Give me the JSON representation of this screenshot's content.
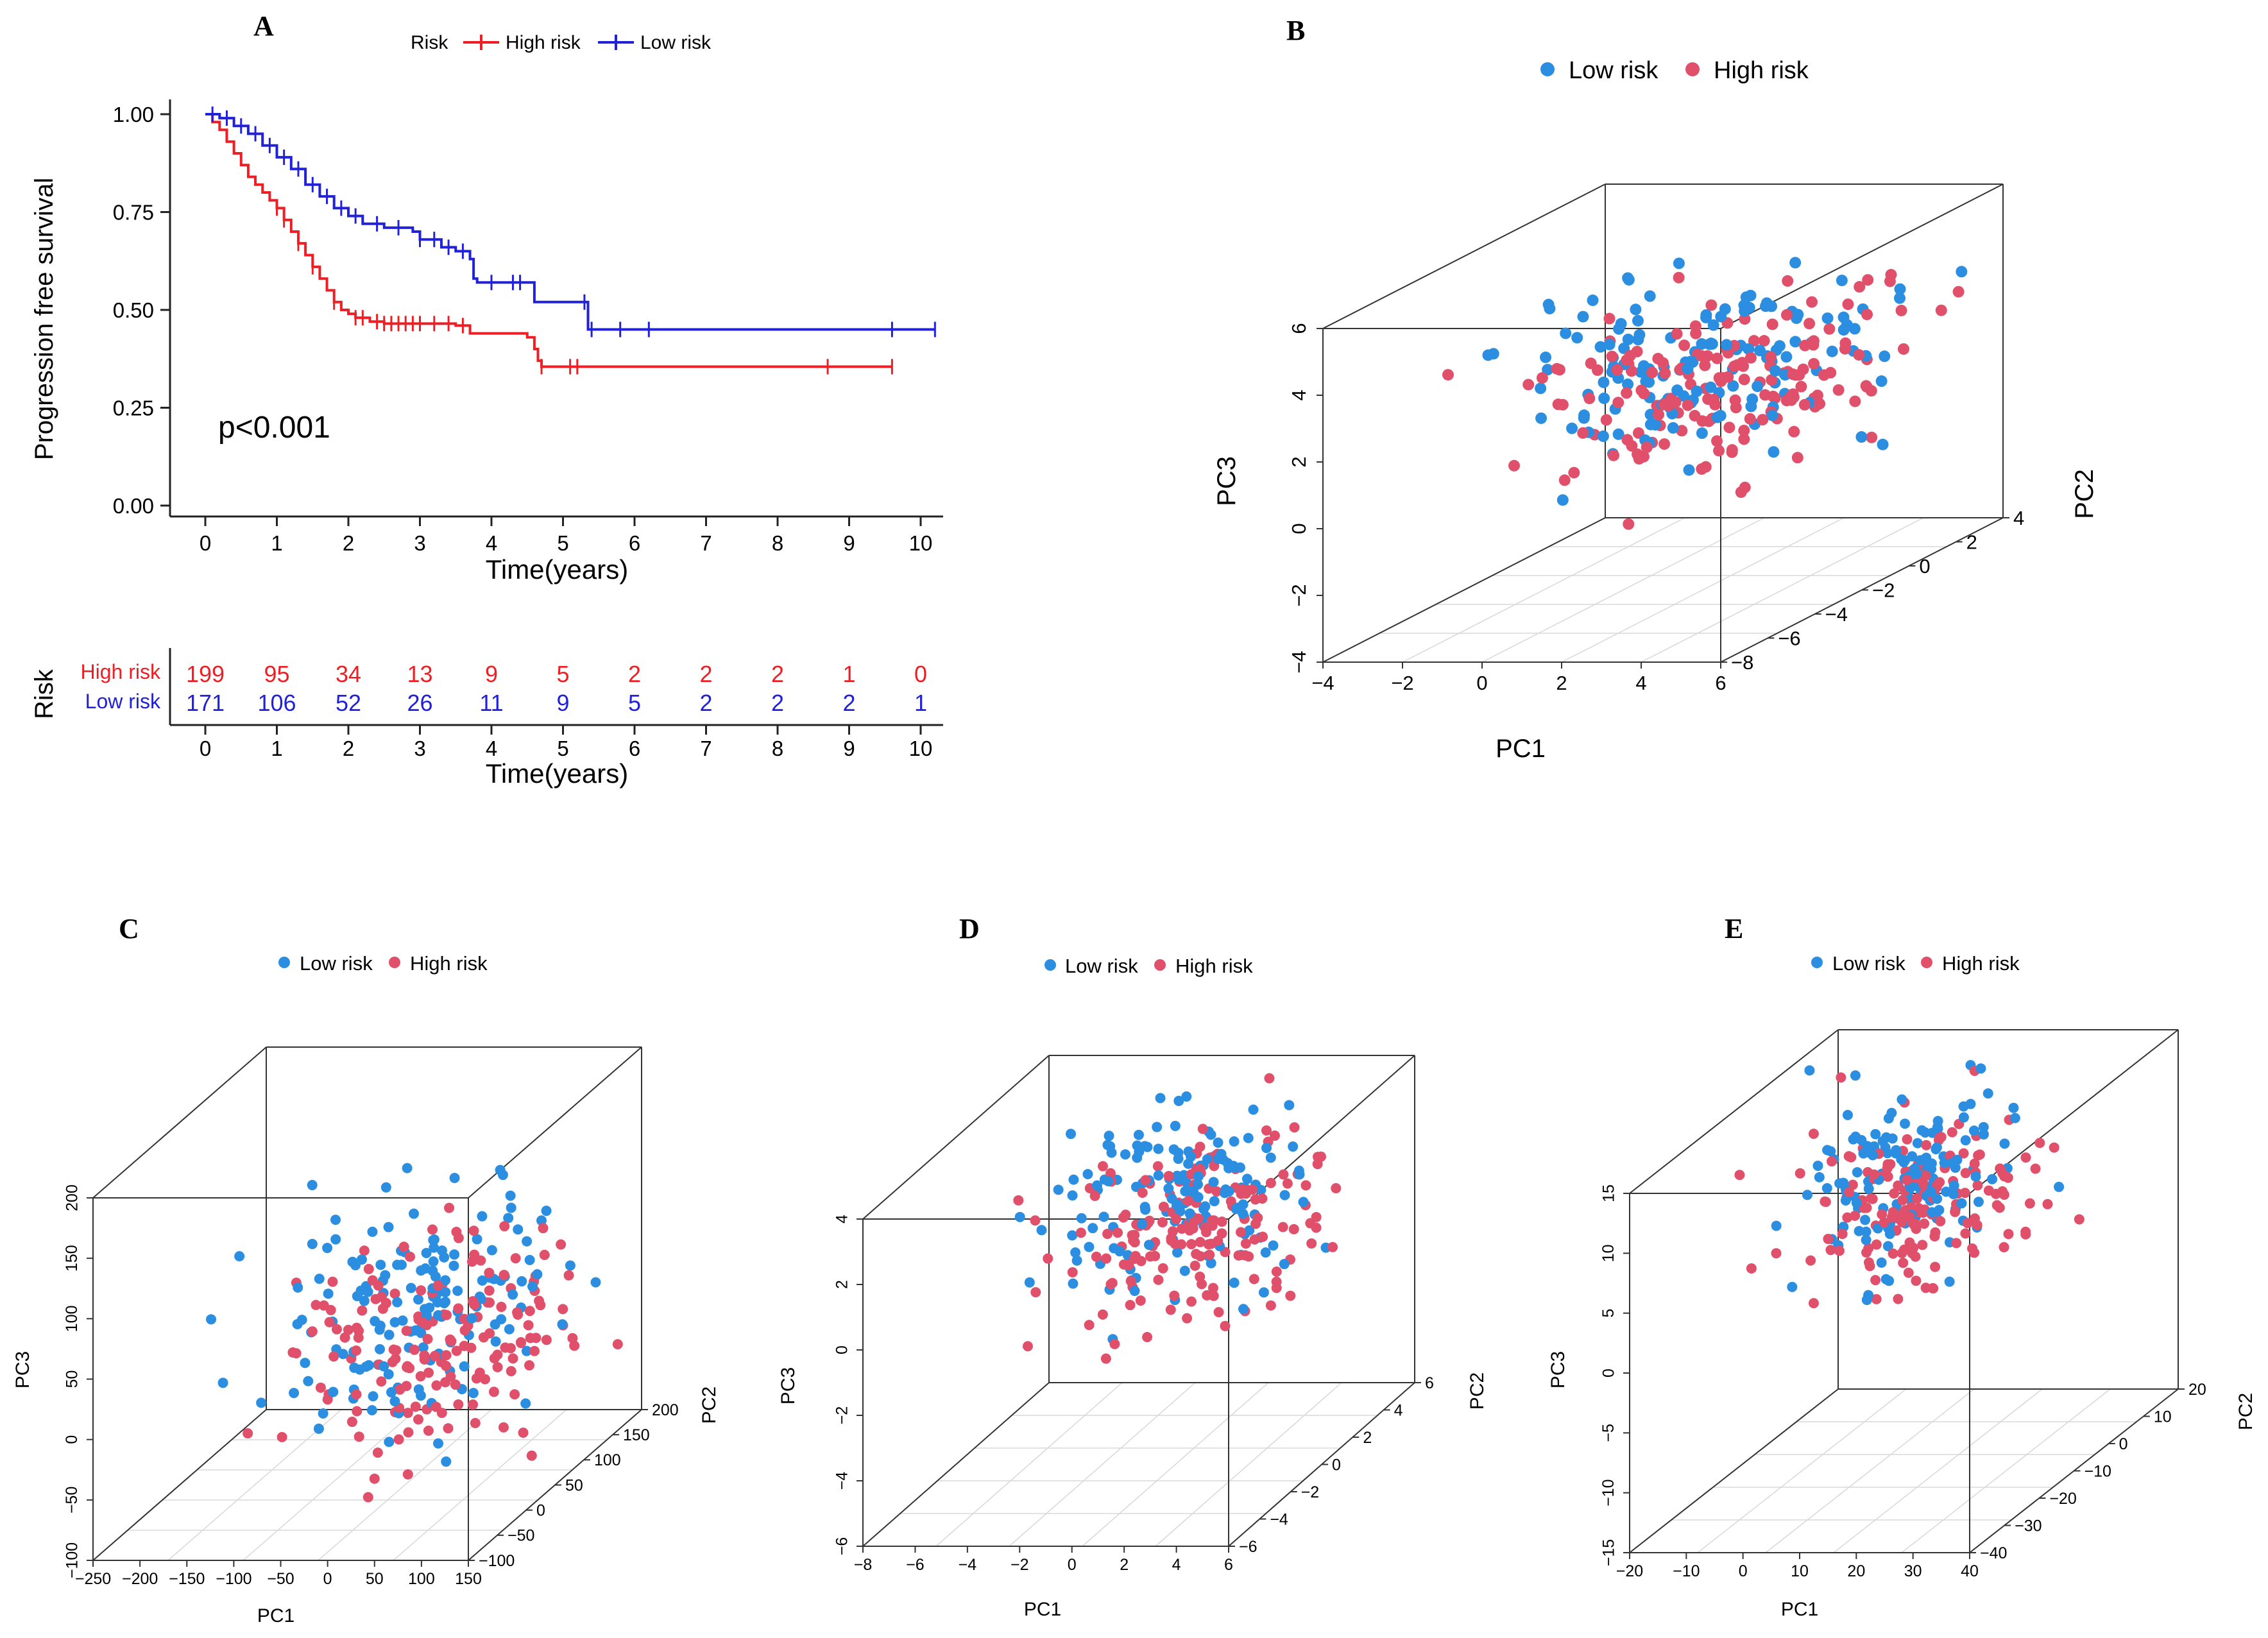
{
  "figure": {
    "colors": {
      "high": "#ee1f24",
      "low": "#2121d9",
      "pca_low": "#2b8ee0",
      "pca_high": "#e0506a",
      "axis": "#222222",
      "grid": "#d8d8d8"
    }
  },
  "chart_data": [
    {
      "panel": "A",
      "type": "line",
      "subtype": "kaplan-meier",
      "legend_title": "Risk",
      "legend": [
        "High risk",
        "Low risk"
      ],
      "ylabel": "Progression free survival",
      "xlabel": "Time(years)",
      "xlim": [
        0,
        10
      ],
      "ylim": [
        0,
        1
      ],
      "xticks": [
        "0",
        "1",
        "2",
        "3",
        "4",
        "5",
        "6",
        "7",
        "8",
        "9",
        "10"
      ],
      "yticks": [
        "0.00",
        "0.25",
        "0.50",
        "0.75",
        "1.00"
      ],
      "annotation": "p<0.001",
      "series": [
        {
          "name": "High risk",
          "steps": [
            [
              0,
              1.0
            ],
            [
              0.1,
              0.98
            ],
            [
              0.2,
              0.96
            ],
            [
              0.3,
              0.93
            ],
            [
              0.4,
              0.9
            ],
            [
              0.5,
              0.87
            ],
            [
              0.6,
              0.84
            ],
            [
              0.7,
              0.82
            ],
            [
              0.8,
              0.8
            ],
            [
              0.9,
              0.78
            ],
            [
              1.0,
              0.76
            ],
            [
              1.1,
              0.73
            ],
            [
              1.2,
              0.7
            ],
            [
              1.3,
              0.67
            ],
            [
              1.4,
              0.64
            ],
            [
              1.5,
              0.61
            ],
            [
              1.6,
              0.58
            ],
            [
              1.7,
              0.55
            ],
            [
              1.8,
              0.52
            ],
            [
              1.9,
              0.5
            ],
            [
              2.0,
              0.49
            ],
            [
              2.1,
              0.48
            ],
            [
              2.3,
              0.47
            ],
            [
              2.5,
              0.465
            ],
            [
              3.5,
              0.46
            ],
            [
              3.7,
              0.44
            ],
            [
              4.5,
              0.43
            ],
            [
              4.6,
              0.4
            ],
            [
              4.65,
              0.37
            ],
            [
              4.7,
              0.355
            ],
            [
              9.6,
              0.355
            ]
          ],
          "censors": [
            1.0,
            1.1,
            1.3,
            1.5,
            1.8,
            2.1,
            2.2,
            2.4,
            2.5,
            2.6,
            2.7,
            2.8,
            2.9,
            3.0,
            3.2,
            3.4,
            3.6,
            4.7,
            5.1,
            5.2,
            8.7,
            9.6
          ]
        },
        {
          "name": "Low risk",
          "steps": [
            [
              0,
              1.0
            ],
            [
              0.2,
              0.99
            ],
            [
              0.4,
              0.97
            ],
            [
              0.6,
              0.95
            ],
            [
              0.8,
              0.92
            ],
            [
              1.0,
              0.89
            ],
            [
              1.2,
              0.86
            ],
            [
              1.4,
              0.82
            ],
            [
              1.6,
              0.79
            ],
            [
              1.8,
              0.76
            ],
            [
              2.0,
              0.74
            ],
            [
              2.2,
              0.72
            ],
            [
              2.5,
              0.71
            ],
            [
              2.9,
              0.7
            ],
            [
              3.0,
              0.68
            ],
            [
              3.3,
              0.66
            ],
            [
              3.5,
              0.65
            ],
            [
              3.7,
              0.63
            ],
            [
              3.75,
              0.58
            ],
            [
              3.8,
              0.57
            ],
            [
              4.6,
              0.57
            ],
            [
              4.6,
              0.52
            ],
            [
              5.3,
              0.52
            ],
            [
              5.35,
              0.45
            ],
            [
              10.2,
              0.45
            ]
          ],
          "censors": [
            0.1,
            0.3,
            0.5,
            0.7,
            0.9,
            1.1,
            1.3,
            1.5,
            1.7,
            1.9,
            2.1,
            2.4,
            2.7,
            3.0,
            3.2,
            3.4,
            3.6,
            4.0,
            4.3,
            4.4,
            5.3,
            5.4,
            5.8,
            6.2,
            9.6,
            10.2
          ]
        }
      ],
      "risk_table": {
        "title": "Risk",
        "xlabel": "Time(years)",
        "times": [
          "0",
          "1",
          "2",
          "3",
          "4",
          "5",
          "6",
          "7",
          "8",
          "9",
          "10"
        ],
        "rows": [
          {
            "name": "High risk",
            "counts": [
              "199",
              "95",
              "34",
              "13",
              "9",
              "5",
              "2",
              "2",
              "2",
              "1",
              "0"
            ]
          },
          {
            "name": "Low risk",
            "counts": [
              "171",
              "106",
              "52",
              "26",
              "11",
              "9",
              "5",
              "2",
              "2",
              "2",
              "1"
            ]
          }
        ]
      }
    },
    {
      "panel": "B",
      "type": "scatter",
      "subtype": "pca-3d",
      "legend": [
        "Low risk",
        "High risk"
      ],
      "axes": {
        "x": {
          "label": "PC1",
          "ticks": [
            "−4",
            "−2",
            "0",
            "2",
            "4",
            "6"
          ],
          "range": [
            -4,
            6
          ]
        },
        "y": {
          "label": "PC2",
          "ticks": [
            "−8",
            "−6",
            "−4",
            "−2",
            "0",
            "2",
            "4"
          ],
          "range": [
            -9,
            4
          ]
        },
        "z": {
          "label": "PC3",
          "ticks": [
            "−4",
            "−2",
            "0",
            "2",
            "4",
            "6"
          ],
          "range": [
            -4,
            6
          ]
        }
      },
      "cluster": {
        "center": [
          2.5,
          -2.5,
          2.5
        ],
        "spread": [
          2.0,
          2.2,
          1.3
        ],
        "n_low": 150,
        "n_high": 170
      }
    },
    {
      "panel": "C",
      "type": "scatter",
      "subtype": "pca-3d",
      "legend": [
        "Low risk",
        "High risk"
      ],
      "axes": {
        "x": {
          "label": "PC1",
          "ticks": [
            "−250",
            "−200",
            "−150",
            "−100",
            "−50",
            "0",
            "50",
            "100",
            "150"
          ],
          "range": [
            -250,
            150
          ]
        },
        "y": {
          "label": "PC2",
          "ticks": [
            "−100",
            "−50",
            "0",
            "50",
            "100",
            "150",
            "200"
          ],
          "range": [
            -120,
            200
          ]
        },
        "z": {
          "label": "PC3",
          "ticks": [
            "−100",
            "−50",
            "0",
            "50",
            "100",
            "150",
            "200"
          ],
          "range": [
            -100,
            200
          ]
        }
      },
      "cluster": {
        "center": [
          20,
          20,
          40
        ],
        "spread": [
          70,
          60,
          45
        ],
        "n_low": 160,
        "n_high": 170
      }
    },
    {
      "panel": "D",
      "type": "scatter",
      "subtype": "pca-3d",
      "legend": [
        "Low risk",
        "High risk"
      ],
      "axes": {
        "x": {
          "label": "PC1",
          "ticks": [
            "−8",
            "−6",
            "−4",
            "−2",
            "0",
            "2",
            "4",
            "6"
          ],
          "range": [
            -8,
            6
          ]
        },
        "y": {
          "label": "PC2",
          "ticks": [
            "−6",
            "−4",
            "−2",
            "0",
            "2",
            "4",
            "6"
          ],
          "range": [
            -7,
            6
          ]
        },
        "z": {
          "label": "PC3",
          "ticks": [
            "−6",
            "−4",
            "−2",
            "0",
            "2",
            "4"
          ],
          "range": [
            -6,
            4
          ]
        }
      },
      "cluster": {
        "center": [
          1.0,
          0,
          1.5
        ],
        "spread": [
          2.2,
          2.0,
          1.2
        ],
        "n_low": 150,
        "n_high": 170
      }
    },
    {
      "panel": "E",
      "type": "scatter",
      "subtype": "pca-3d",
      "legend": [
        "Low risk",
        "High risk"
      ],
      "axes": {
        "x": {
          "label": "PC1",
          "ticks": [
            "−20",
            "−10",
            "0",
            "10",
            "20",
            "30",
            "40"
          ],
          "range": [
            -20,
            40
          ]
        },
        "y": {
          "label": "PC2",
          "ticks": [
            "−40",
            "−30",
            "−20",
            "−10",
            "0",
            "10",
            "20"
          ],
          "range": [
            -45,
            20
          ]
        },
        "z": {
          "label": "PC3",
          "ticks": [
            "−15",
            "−10",
            "−5",
            "0",
            "5",
            "10",
            "15"
          ],
          "range": [
            -15,
            15
          ]
        }
      },
      "cluster": {
        "center": [
          5,
          0,
          6
        ],
        "spread": [
          9,
          10,
          3.2
        ],
        "n_low": 150,
        "n_high": 170
      }
    }
  ]
}
